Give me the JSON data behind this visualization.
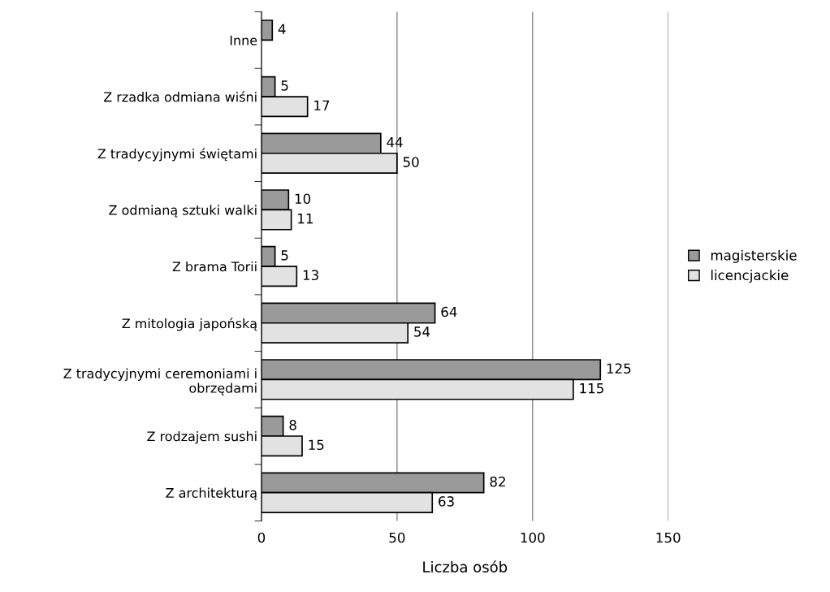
{
  "chart_data": {
    "type": "bar",
    "orientation": "horizontal",
    "xlabel": "Liczba osób",
    "categories": [
      "Inne",
      "Z rzadka odmiana wiśni",
      "Z tradycyjnymi świętami",
      "Z odmianą sztuki walki",
      "Z brama Torii",
      "Z mitologia japońską",
      "Z tradycyjnymi ceremoniami i obrzędami",
      "Z rodzajem sushi",
      "Z architekturą"
    ],
    "series": [
      {
        "name": "magisterskie",
        "color": "#9a9a9a",
        "values": [
          4,
          5,
          44,
          10,
          5,
          64,
          125,
          8,
          82
        ]
      },
      {
        "name": "licencjackie",
        "color": "#e2e2e2",
        "values": [
          null,
          17,
          50,
          11,
          13,
          54,
          115,
          15,
          63
        ]
      }
    ],
    "xlim": [
      0,
      150
    ],
    "xticks": [
      0,
      50,
      100,
      150
    ],
    "grid": "x",
    "legend": "right",
    "data_labels": true
  }
}
